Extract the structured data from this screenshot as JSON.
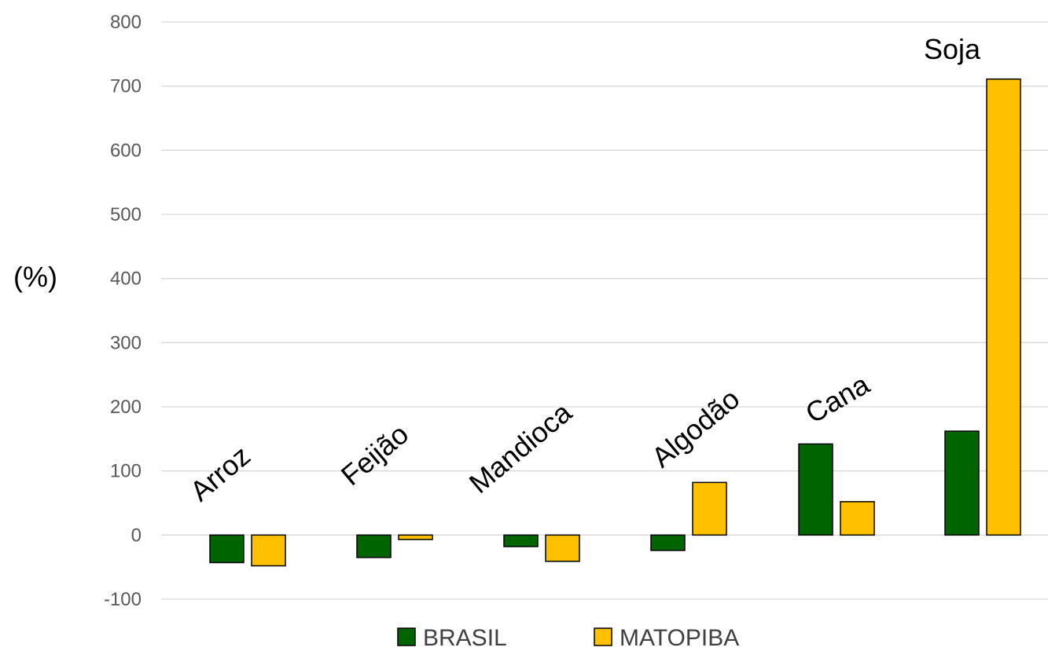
{
  "chart_data": {
    "type": "bar",
    "title": "",
    "xlabel": "",
    "ylabel": "(%)",
    "categories": [
      "Arroz",
      "Feijão",
      "Mandioca",
      "Algodão",
      "Cana",
      "Soja"
    ],
    "series": [
      {
        "name": "BRASIL",
        "color": "#006400",
        "values": [
          -43,
          -35,
          -18,
          -24,
          142,
          162
        ]
      },
      {
        "name": "MATOPIBA",
        "color": "#FFC000",
        "values": [
          -48,
          -7,
          -41,
          82,
          52,
          711
        ]
      }
    ],
    "ylim": [
      -100,
      800
    ],
    "yticks": [
      -100,
      0,
      100,
      200,
      300,
      400,
      500,
      600,
      700,
      800
    ],
    "grid": true,
    "legend": "bottom",
    "category_label_style": {
      "rotation_deg": [
        -40,
        -40,
        -40,
        -40,
        -30,
        0
      ]
    }
  }
}
